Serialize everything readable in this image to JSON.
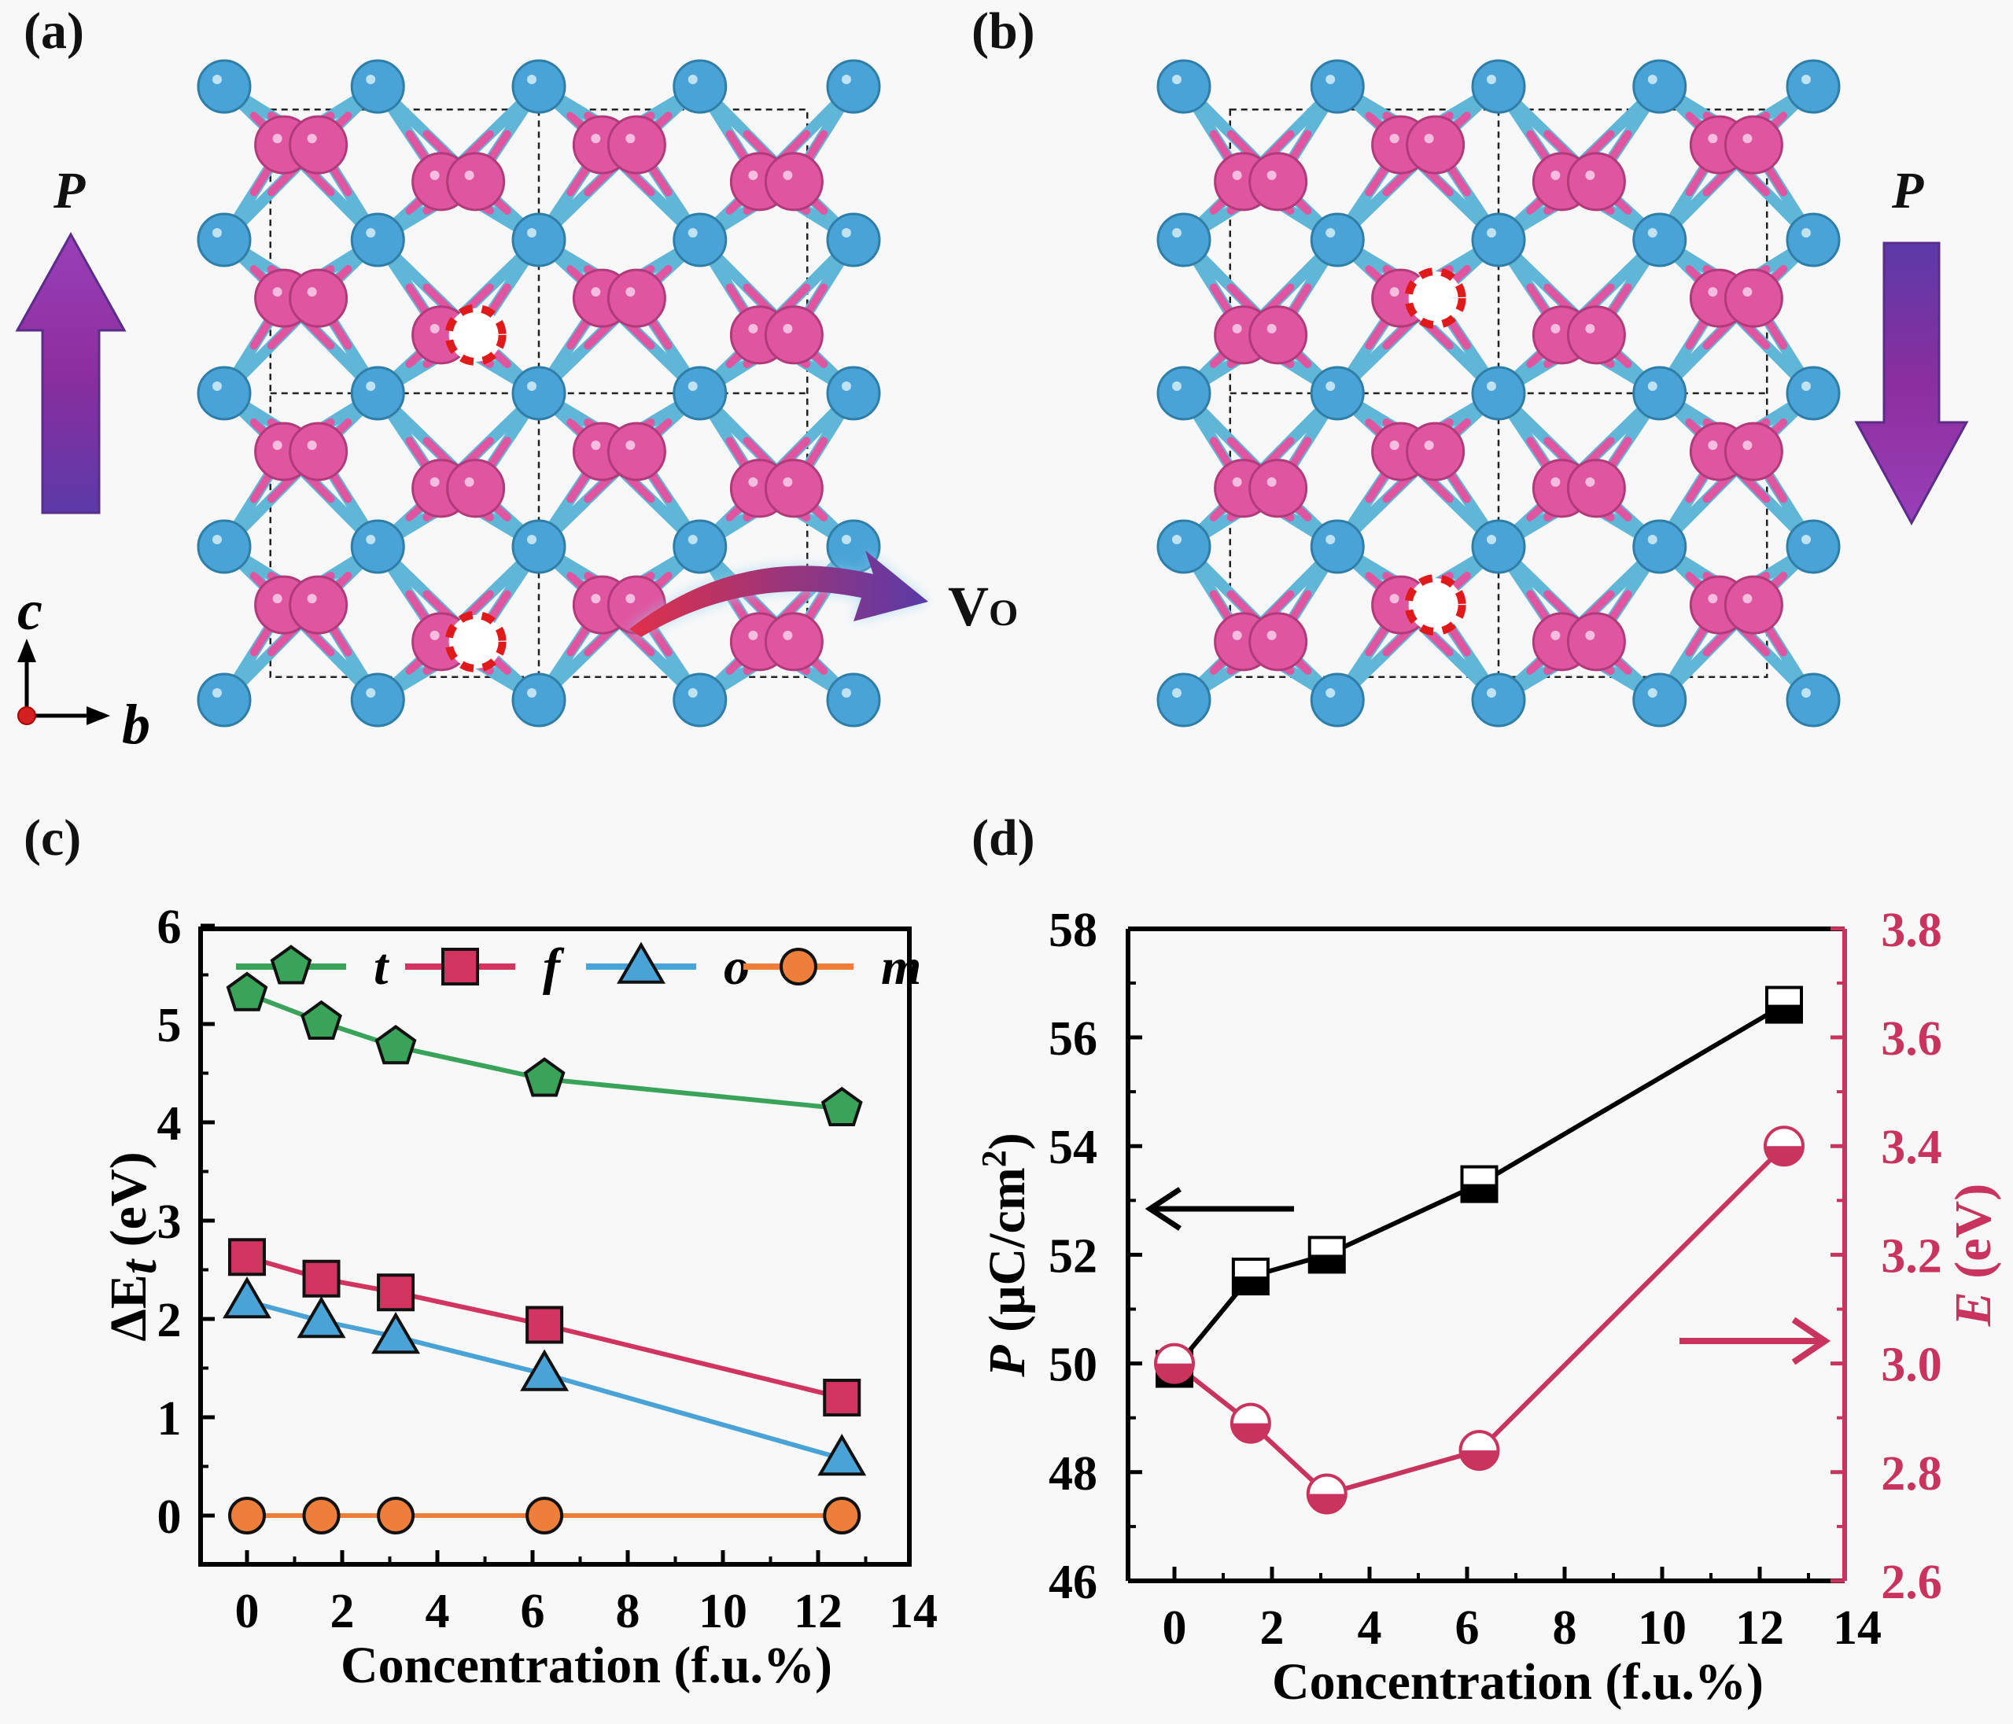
{
  "panels": {
    "a": {
      "label": "(a)",
      "polarization_label": "P",
      "polarization_direction": "up",
      "vacancy_label": "V",
      "vacancy_subscript": "O",
      "axis_c": "c",
      "axis_b": "b"
    },
    "b": {
      "label": "(b)",
      "polarization_label": "P",
      "polarization_direction": "down"
    },
    "c": {
      "label": "(c)"
    },
    "d": {
      "label": "(d)"
    }
  },
  "colors": {
    "hf_atom": "#4aa3d6",
    "o_atom": "#e0559f",
    "vacancy": "#e01a1a",
    "arrow_purple": "#8a3bb0",
    "series_t": "#3aa35a",
    "series_f": "#d0345f",
    "series_o": "#4aa3d6",
    "series_m": "#ee7f3a",
    "e_axis": "#c8345e"
  },
  "chart_data": [
    {
      "id": "c",
      "type": "line",
      "title": "",
      "xlabel": "Concentration (f.u.%)",
      "ylabel": "ΔE_t (eV)",
      "xlim": [
        -1,
        14
      ],
      "ylim": [
        -0.5,
        6
      ],
      "xticks": [
        0,
        2,
        4,
        6,
        8,
        10,
        12,
        14
      ],
      "yticks": [
        0,
        1,
        2,
        3,
        4,
        5,
        6
      ],
      "grid": false,
      "legend_position": "top",
      "x": [
        0,
        1.5625,
        3.125,
        6.25,
        12.5
      ],
      "series": [
        {
          "name": "t",
          "marker": "pentagon",
          "color": "#3aa35a",
          "values": [
            5.31,
            5.02,
            4.77,
            4.44,
            4.14
          ]
        },
        {
          "name": "f",
          "marker": "square",
          "color": "#d0345f",
          "values": [
            2.63,
            2.41,
            2.27,
            1.94,
            1.2
          ]
        },
        {
          "name": "o",
          "marker": "triangle",
          "color": "#4aa3d6",
          "values": [
            2.18,
            1.98,
            1.82,
            1.44,
            0.58
          ]
        },
        {
          "name": "m",
          "marker": "circle",
          "color": "#ee7f3a",
          "values": [
            0,
            0,
            0,
            0,
            0
          ]
        }
      ]
    },
    {
      "id": "d",
      "type": "line",
      "title": "",
      "xlabel": "Concentration (f.u.%)",
      "ylabel_left": "P (μC/cm²)",
      "ylabel_right": "E (eV)",
      "xlim": [
        -1,
        14
      ],
      "ylim_left": [
        46,
        58
      ],
      "ylim_right": [
        2.6,
        3.8
      ],
      "xticks": [
        0,
        2,
        4,
        6,
        8,
        10,
        12,
        14
      ],
      "yticks_left": [
        46,
        48,
        50,
        52,
        54,
        56,
        58
      ],
      "yticks_right": [
        2.6,
        2.8,
        3.0,
        3.2,
        3.4,
        3.6,
        3.8
      ],
      "grid": false,
      "x": [
        0,
        1.5625,
        3.125,
        6.25,
        12.5
      ],
      "series": [
        {
          "name": "P",
          "axis": "left",
          "marker": "half-filled-square",
          "color": "#000000",
          "values": [
            49.9,
            51.6,
            52.0,
            53.3,
            56.6
          ]
        },
        {
          "name": "E",
          "axis": "right",
          "marker": "half-filled-circle",
          "color": "#c8345e",
          "values": [
            3.0,
            2.89,
            2.76,
            2.84,
            3.4
          ]
        }
      ],
      "annotations": [
        "left arrow → P axis",
        "right arrow → E axis"
      ]
    }
  ]
}
